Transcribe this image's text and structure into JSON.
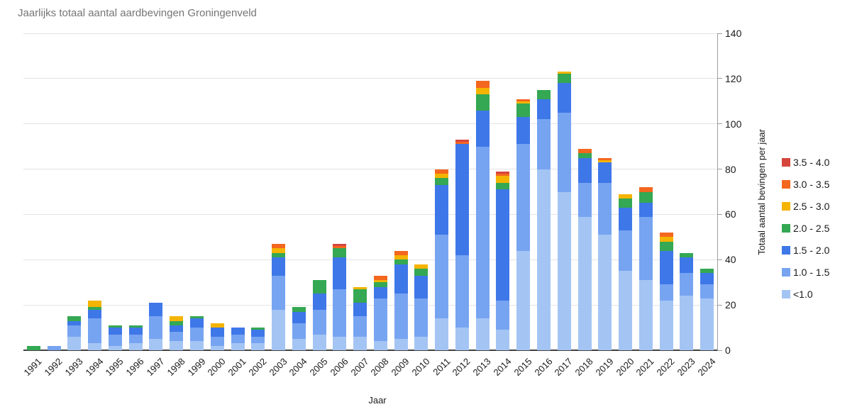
{
  "chart_data": {
    "type": "bar",
    "stacked": true,
    "title": "Jaarlijks totaal aantal aardbevingen Groningenveld",
    "xlabel": "Jaar",
    "ylabel": "Totaal aantal bevingen per jaar",
    "ylim": [
      0,
      140
    ],
    "yticks": [
      0,
      20,
      40,
      60,
      80,
      100,
      120,
      140
    ],
    "grid": true,
    "legend_position": "right",
    "title_color": "#757575",
    "categories": [
      "1991",
      "1992",
      "1993",
      "1994",
      "1995",
      "1996",
      "1997",
      "1998",
      "1999",
      "2000",
      "2001",
      "2002",
      "2003",
      "2004",
      "2005",
      "2006",
      "2007",
      "2008",
      "2009",
      "2010",
      "2011",
      "2012",
      "2013",
      "2014",
      "2015",
      "2016",
      "2017",
      "2018",
      "2019",
      "2020",
      "2021",
      "2022",
      "2023",
      "2024"
    ],
    "series": [
      {
        "name": "<1.0",
        "color": "#a4c5f4",
        "values": [
          0,
          0,
          6,
          3,
          2,
          3,
          5,
          4,
          4,
          2,
          3,
          3,
          18,
          5,
          7,
          6,
          6,
          4,
          5,
          6,
          14,
          10,
          14,
          9,
          44,
          80,
          70,
          59,
          51,
          35,
          31,
          22,
          24,
          23
        ]
      },
      {
        "name": "1.0 - 1.5",
        "color": "#77a4f1",
        "values": [
          0,
          2,
          5,
          11,
          5,
          4,
          10,
          4,
          6,
          4,
          4,
          3,
          15,
          7,
          11,
          21,
          9,
          19,
          20,
          17,
          37,
          32,
          76,
          13,
          47,
          22,
          35,
          15,
          23,
          18,
          28,
          7,
          10,
          6
        ]
      },
      {
        "name": "1.5 - 2.0",
        "color": "#3e77e8",
        "values": [
          0,
          0,
          2,
          4,
          3,
          3,
          6,
          3,
          4,
          4,
          3,
          3,
          8,
          5,
          7,
          14,
          6,
          5,
          13,
          10,
          22,
          49,
          16,
          49,
          12,
          9,
          13,
          11,
          9,
          10,
          6,
          15,
          7,
          5
        ]
      },
      {
        "name": "2.0 - 2.5",
        "color": "#34a853",
        "values": [
          2,
          0,
          2,
          1,
          1,
          1,
          0,
          2,
          1,
          0,
          0,
          1,
          2,
          2,
          6,
          4,
          6,
          2,
          2,
          3,
          3,
          0,
          7,
          3,
          6,
          4,
          4,
          2,
          0,
          4,
          5,
          4,
          2,
          2
        ]
      },
      {
        "name": "2.5 - 3.0",
        "color": "#f4b400",
        "values": [
          0,
          0,
          0,
          3,
          0,
          0,
          0,
          2,
          0,
          2,
          0,
          0,
          2,
          0,
          0,
          0,
          1,
          1,
          2,
          2,
          2,
          0,
          3,
          3,
          1,
          0,
          1,
          0,
          1,
          2,
          0,
          2,
          0,
          0
        ]
      },
      {
        "name": "3.0 - 3.5",
        "color": "#f4671f",
        "values": [
          0,
          0,
          0,
          0,
          0,
          0,
          0,
          0,
          0,
          0,
          0,
          0,
          2,
          0,
          0,
          1,
          0,
          2,
          2,
          0,
          2,
          1,
          3,
          1,
          1,
          0,
          0,
          2,
          1,
          0,
          2,
          2,
          0,
          0
        ]
      },
      {
        "name": "3.5 - 4.0",
        "color": "#d6453c",
        "values": [
          0,
          0,
          0,
          0,
          0,
          0,
          0,
          0,
          0,
          0,
          0,
          0,
          0,
          0,
          0,
          1,
          0,
          0,
          0,
          0,
          0,
          1,
          0,
          1,
          0,
          0,
          0,
          0,
          0,
          0,
          0,
          0,
          0,
          0
        ]
      }
    ],
    "legend_order_top_to_bottom": [
      "3.5 - 4.0",
      "3.0 - 3.5",
      "2.5 - 3.0",
      "2.0 - 2.5",
      "1.5 - 2.0",
      "1.0 - 1.5",
      "<1.0"
    ]
  }
}
